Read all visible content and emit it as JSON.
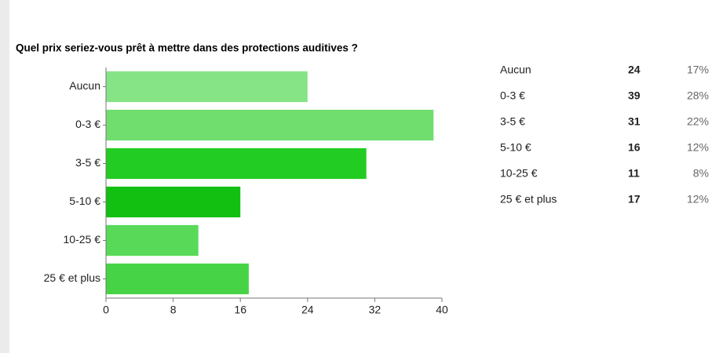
{
  "chart_data": {
    "type": "bar",
    "orientation": "horizontal",
    "title": "Quel prix seriez-vous prêt à mettre dans des protections auditives ?",
    "categories": [
      "Aucun",
      "0-3 €",
      "3-5 €",
      "5-10 €",
      "10-25 €",
      "25 € et plus"
    ],
    "values": [
      24,
      39,
      31,
      16,
      11,
      17
    ],
    "colors": [
      "#86e486",
      "#6fde6f",
      "#22cc22",
      "#12c012",
      "#58da58",
      "#46d446"
    ],
    "shares": [
      "17%",
      "28%",
      "22%",
      "12%",
      "8%",
      "12%"
    ],
    "xlim": [
      0,
      40
    ],
    "xticks": [
      0,
      8,
      16,
      24,
      32,
      40
    ],
    "grid": false
  }
}
